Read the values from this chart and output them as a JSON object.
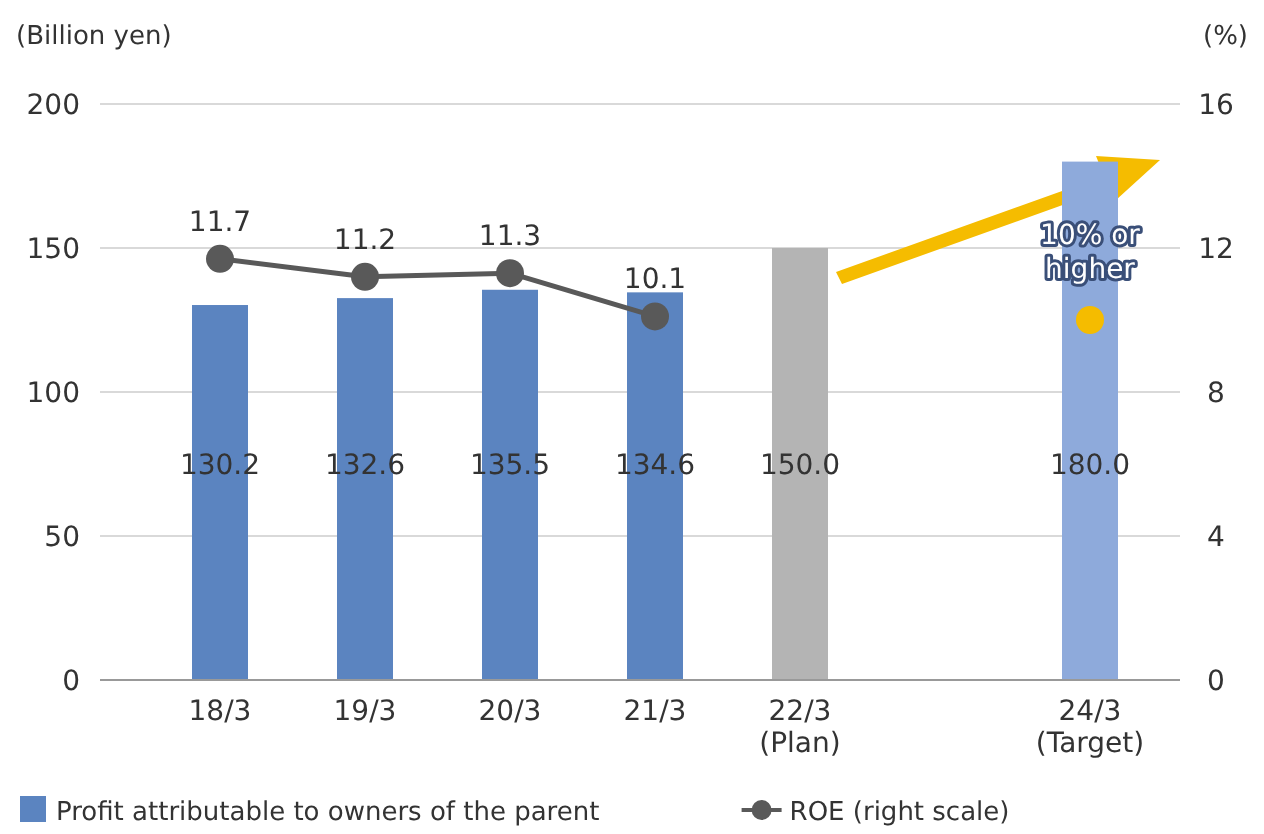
{
  "chart_data": {
    "type": "bar",
    "ylabel": "(Billion yen)",
    "y2label": "(%)",
    "categories": [
      "18/3",
      "19/3",
      "20/3",
      "21/3",
      "22/3\n(Plan)",
      null,
      "24/3\n(Target)"
    ],
    "series": [
      {
        "name": "Profit attributable to owners of the parent",
        "color": "#5b84c0",
        "colors": [
          "#5b84c0",
          "#5b84c0",
          "#5b84c0",
          "#5b84c0",
          "#b4b4b4",
          null,
          "#8eaadb"
        ],
        "values": [
          130.2,
          132.6,
          135.5,
          134.6,
          150.0,
          null,
          180.0
        ],
        "value_labels": [
          "130.2",
          "132.6",
          "135.5",
          "134.6",
          "150.0",
          null,
          "180.0"
        ]
      },
      {
        "type": "line",
        "name": "ROE (right scale)",
        "axis": "y2",
        "color": "#595959",
        "marker": "circle",
        "values": [
          11.7,
          11.2,
          11.3,
          10.1,
          null,
          null,
          null
        ],
        "value_labels": [
          "11.7",
          "11.2",
          "11.3",
          "10.1",
          null,
          null,
          null
        ]
      },
      {
        "type": "scatter",
        "axis": "y2",
        "color": "#f5bc00",
        "marker": "circle",
        "values": [
          null,
          null,
          null,
          null,
          null,
          null,
          10
        ]
      }
    ],
    "annotations": [
      "10% or\nhigher"
    ],
    "ylim": [
      0,
      200
    ],
    "yticks": [
      0,
      50,
      100,
      150,
      200
    ],
    "y2lim": [
      0,
      16
    ],
    "y2ticks": [
      0,
      4,
      8,
      12,
      16
    ],
    "grid": "y",
    "legend": "bottom"
  }
}
